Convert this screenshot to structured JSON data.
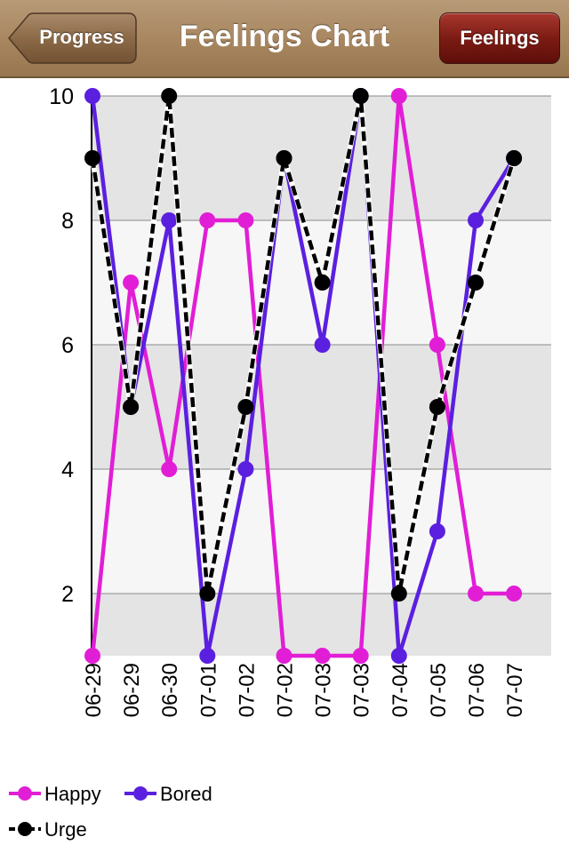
{
  "nav": {
    "title": "Feelings Chart",
    "back_label": "Progress",
    "right_label": "Feelings"
  },
  "chart_data": {
    "type": "line",
    "categories": [
      "06-29",
      "06-29",
      "06-30",
      "07-01",
      "07-02",
      "07-02",
      "07-03",
      "07-03",
      "07-04",
      "07-05",
      "07-06",
      "07-07"
    ],
    "ylim": [
      1,
      10
    ],
    "yticks": [
      2,
      4,
      6,
      8,
      10
    ],
    "grid": true,
    "legend_position": "bottom-left",
    "series": [
      {
        "name": "Happy",
        "color": "#e11ed6",
        "dashed": false,
        "values": [
          1,
          7,
          4,
          8,
          8,
          1,
          1,
          1,
          10,
          6,
          2,
          2
        ]
      },
      {
        "name": "Bored",
        "color": "#5b1fe0",
        "dashed": false,
        "values": [
          10,
          5,
          8,
          1,
          4,
          9,
          6,
          10,
          1,
          3,
          8,
          9
        ]
      },
      {
        "name": "Urge",
        "color": "#000000",
        "dashed": true,
        "values": [
          9,
          5,
          10,
          2,
          5,
          9,
          7,
          10,
          2,
          5,
          7,
          9
        ]
      }
    ]
  }
}
